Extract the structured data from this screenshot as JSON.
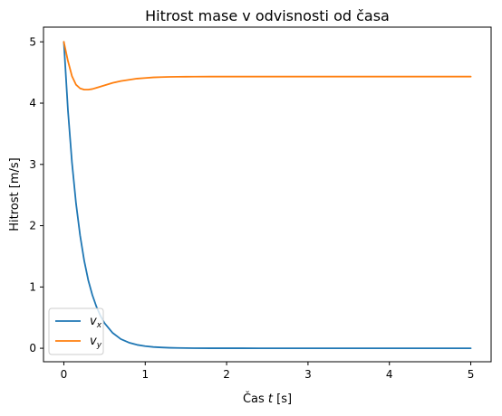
{
  "chart_data": {
    "type": "line",
    "title": "Hitrost mase v odvisnosti od časa",
    "xlabel": "Čas t [s]",
    "xlabel_parts": {
      "before": "Čas ",
      "italic": "t",
      "after": " [s]"
    },
    "ylabel": "Hitrost [m/s]",
    "xlim": [
      -0.25,
      5.25
    ],
    "ylim": [
      -0.22,
      5.24
    ],
    "x_ticks": [
      0,
      1,
      2,
      3,
      4,
      5
    ],
    "y_ticks": [
      0,
      1,
      2,
      3,
      4,
      5
    ],
    "x_tick_labels": [
      "0",
      "1",
      "2",
      "3",
      "4",
      "5"
    ],
    "y_tick_labels": [
      "0",
      "1",
      "2",
      "3",
      "4",
      "5"
    ],
    "grid": false,
    "legend": {
      "position": "lower-left",
      "entries": [
        {
          "base": "v",
          "sub": "x",
          "color": "#1f77b4"
        },
        {
          "base": "v",
          "sub": "y",
          "color": "#ff7f0e"
        }
      ]
    },
    "x": [
      0,
      0.05,
      0.1,
      0.15,
      0.2,
      0.25,
      0.3,
      0.35,
      0.4,
      0.45,
      0.5,
      0.6,
      0.7,
      0.8,
      0.9,
      1.0,
      1.1,
      1.2,
      1.3,
      1.4,
      1.5,
      1.6,
      1.8,
      2.0,
      2.2,
      2.4,
      2.6,
      2.8,
      3.0,
      3.5,
      4.0,
      4.5,
      5.0
    ],
    "series": [
      {
        "name": "v_x",
        "color": "#1f77b4",
        "values": [
          5.0,
          3.89,
          3.03,
          2.36,
          1.84,
          1.43,
          1.11,
          0.87,
          0.68,
          0.53,
          0.41,
          0.25,
          0.15,
          0.092,
          0.056,
          0.034,
          0.021,
          0.013,
          0.0077,
          0.0047,
          0.0028,
          0.0017,
          0.0006,
          0.0002,
          0.0001,
          0.0,
          0.0,
          0.0,
          0.0,
          0.0,
          0.0,
          0.0,
          0.0
        ]
      },
      {
        "name": "v_y",
        "color": "#ff7f0e",
        "values": [
          5.0,
          4.69,
          4.44,
          4.3,
          4.24,
          4.22,
          4.22,
          4.23,
          4.25,
          4.27,
          4.29,
          4.33,
          4.36,
          4.38,
          4.4,
          4.41,
          4.42,
          4.425,
          4.428,
          4.43,
          4.431,
          4.432,
          4.433,
          4.433,
          4.433,
          4.433,
          4.433,
          4.433,
          4.433,
          4.433,
          4.433,
          4.433,
          4.433
        ]
      }
    ]
  }
}
